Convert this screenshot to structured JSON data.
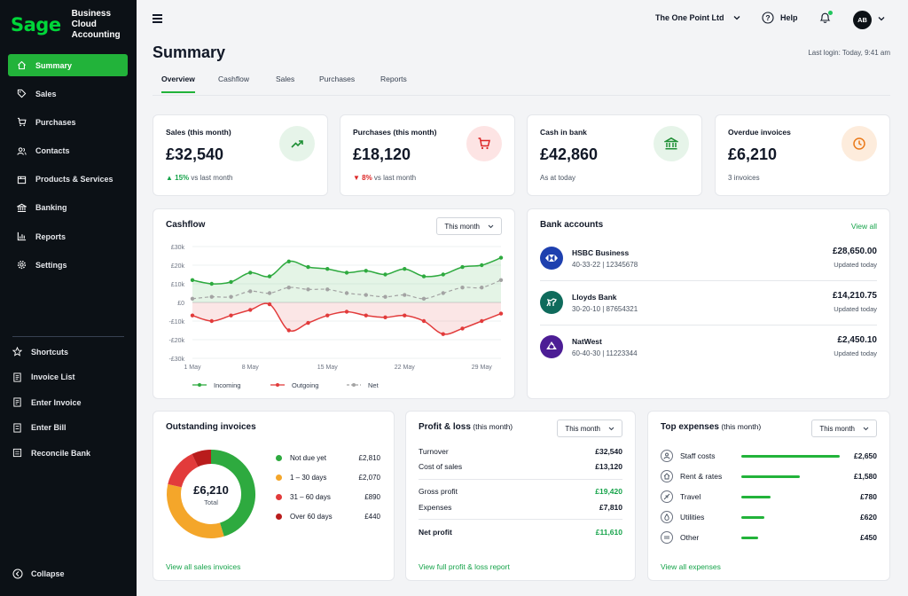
{
  "app": {
    "logo": "Sage",
    "product_line1": "Business Cloud",
    "product_line2": "Accounting"
  },
  "sidebar": {
    "items": [
      {
        "label": "Summary",
        "icon": "home-icon",
        "active": true
      },
      {
        "label": "Sales",
        "icon": "sales-tag-icon"
      },
      {
        "label": "Purchases",
        "icon": "cart-icon"
      },
      {
        "label": "Contacts",
        "icon": "contacts-icon"
      },
      {
        "label": "Products & Services",
        "icon": "box-icon"
      },
      {
        "label": "Banking",
        "icon": "bank-icon"
      },
      {
        "label": "Reports",
        "icon": "bar-chart-icon"
      },
      {
        "label": "Settings",
        "icon": "gear-icon"
      }
    ],
    "shortcuts": [
      {
        "label": "Shortcuts",
        "icon": "star-icon"
      },
      {
        "label": "Invoice List",
        "icon": "invoice-list-icon"
      },
      {
        "label": "Enter Invoice",
        "icon": "enter-invoice-icon"
      },
      {
        "label": "Enter Bill",
        "icon": "bill-icon"
      },
      {
        "label": "Reconcile Bank",
        "icon": "reconcile-icon"
      }
    ],
    "collapse_label": "Collapse"
  },
  "header": {
    "company": "The One Point Ltd",
    "help": "Help",
    "avatar_initials": "AB",
    "notification_dot": true
  },
  "page": {
    "title": "Summary",
    "last_login": "Last login: Today, 9:41 am"
  },
  "tabs": [
    "Overview",
    "Cashflow",
    "Sales",
    "Purchases",
    "Reports"
  ],
  "kpis": [
    {
      "label": "Sales (this month)",
      "value": "£32,540",
      "trend": "▲ 15%",
      "trend_suffix": " vs last month",
      "trend_color": "#16a34a",
      "icon": "trend-up-icon",
      "icon_bg": "#e6f4e9",
      "icon_color": "#1f8f35"
    },
    {
      "label": "Purchases (this month)",
      "value": "£18,120",
      "trend": "▼ 8%",
      "trend_suffix": " vs last month",
      "trend_color": "#dc2626",
      "icon": "cart-icon",
      "icon_bg": "#fde4e4",
      "icon_color": "#dc2626"
    },
    {
      "label": "Cash in bank",
      "value": "£42,860",
      "sub": "As at today",
      "icon": "bank-icon",
      "icon_bg": "#e6f4e9",
      "icon_color": "#1f8f35"
    },
    {
      "label": "Overdue invoices",
      "value": "£6,210",
      "sub": "3 invoices",
      "icon": "clock-icon",
      "icon_bg": "#fdecdc",
      "icon_color": "#ea7a1a"
    }
  ],
  "cashflow": {
    "title": "Cashflow",
    "period": "This month",
    "legend": [
      "Incoming",
      "Outgoing",
      "Net"
    ]
  },
  "chart_data": {
    "type": "line",
    "x": [
      "1 May",
      "3 May",
      "5 May",
      "8 May",
      "10 May",
      "12 May",
      "14 May",
      "15 May",
      "17 May",
      "19 May",
      "21 May",
      "22 May",
      "24 May",
      "26 May",
      "28 May",
      "29 May",
      "30 May"
    ],
    "x_tick_labels": [
      "1 May",
      "8 May",
      "15 May",
      "22 May",
      "29 May"
    ],
    "y_ticks": [
      "£30k",
      "£20k",
      "£10k",
      "£0",
      "-£10k",
      "-£20k",
      "-£30k"
    ],
    "ylim": [
      -30000,
      30000
    ],
    "series": [
      {
        "name": "Incoming",
        "color": "#2eaa3f",
        "values": [
          12000,
          10000,
          11000,
          16000,
          14000,
          22000,
          19000,
          18000,
          16000,
          17000,
          15000,
          18000,
          14000,
          15000,
          19000,
          20000,
          24000
        ]
      },
      {
        "name": "Outgoing",
        "color": "#e23b3b",
        "values": [
          -7000,
          -10000,
          -7000,
          -4000,
          -1000,
          -15000,
          -11000,
          -7000,
          -5000,
          -7000,
          -8000,
          -7000,
          -10000,
          -17000,
          -14000,
          -10000,
          -6000
        ]
      },
      {
        "name": "Net",
        "color": "#a3a3a3",
        "values": [
          2000,
          3000,
          3000,
          6000,
          5000,
          8000,
          7000,
          7000,
          5000,
          4000,
          3000,
          4000,
          2000,
          5000,
          8000,
          8000,
          12000
        ]
      }
    ]
  },
  "bank_accounts": {
    "title": "Bank accounts",
    "view_all": "View all",
    "accounts": [
      {
        "name": "HSBC Business",
        "number": "40-33-22  |  12345678",
        "balance": "£28,650.00",
        "updated": "Updated today",
        "logo_bg": "#1e40af",
        "icon": "hsbc-logo-icon"
      },
      {
        "name": "Lloyds Bank",
        "number": "30-20-10  |  87654321",
        "balance": "£14,210.75",
        "updated": "Updated today",
        "logo_bg": "#0f6b5c",
        "icon": "lloyds-horse-icon"
      },
      {
        "name": "NatWest",
        "number": "60-40-30  |  11223344",
        "balance": "£2,450.10",
        "updated": "Updated today",
        "logo_bg": "#4c1d95",
        "icon": "natwest-logo-icon"
      }
    ]
  },
  "outstanding": {
    "title": "Outstanding invoices",
    "total_value": "£6,210",
    "total_label": "Total",
    "link": "View all sales invoices",
    "segments": [
      {
        "label": "Not due yet",
        "amount": "£2,810",
        "value": 2810,
        "color": "#2eaa3f"
      },
      {
        "label": "1 – 30 days",
        "amount": "£2,070",
        "value": 2070,
        "color": "#f4a62a"
      },
      {
        "label": "31 – 60 days",
        "amount": "£890",
        "value": 890,
        "color": "#e23b3b"
      },
      {
        "label": "Over 60 days",
        "amount": "£440",
        "value": 440,
        "color": "#b91c1c"
      }
    ]
  },
  "profit_loss": {
    "title": "Profit & loss",
    "title_suffix": " (this month)",
    "period": "This month",
    "rows": [
      {
        "label": "Turnover",
        "value": "£32,540"
      },
      {
        "label": "Cost of sales",
        "value": "£13,120"
      },
      {
        "label": "Gross profit",
        "value": "£19,420",
        "green": true
      },
      {
        "label": "Expenses",
        "value": "£7,810"
      },
      {
        "label": "Net profit",
        "value": "£11,610",
        "green": true,
        "bold_label": true
      }
    ],
    "link": "View full profit & loss report"
  },
  "top_expenses": {
    "title": "Top expenses",
    "title_suffix": " (this month)",
    "period": "This month",
    "items": [
      {
        "label": "Staff costs",
        "amount": "£2,650",
        "value": 2650,
        "icon": "staff-icon"
      },
      {
        "label": "Rent & rates",
        "amount": "£1,580",
        "value": 1580,
        "icon": "rent-icon"
      },
      {
        "label": "Travel",
        "amount": "£780",
        "value": 780,
        "icon": "plane-icon"
      },
      {
        "label": "Utilities",
        "amount": "£620",
        "value": 620,
        "icon": "utilities-icon"
      },
      {
        "label": "Other",
        "amount": "£450",
        "value": 450,
        "icon": "other-icon"
      }
    ],
    "link": "View all expenses"
  }
}
